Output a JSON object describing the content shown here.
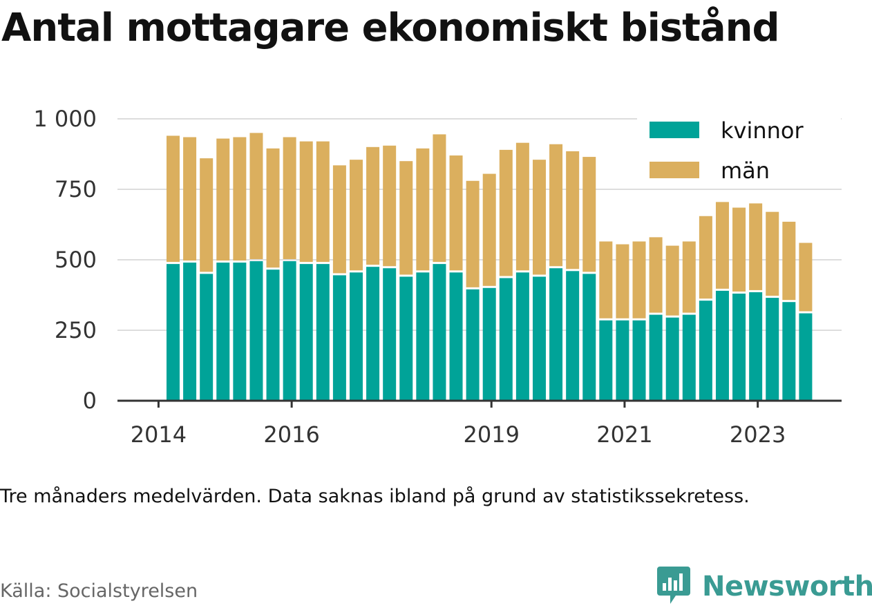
{
  "title": "Antal mottagare ekonomiskt bistånd",
  "note": "Tre månaders medelvärden. Data saknas ibland på grund av statistikssekretess.",
  "source": "Källa: Socialstyrelsen",
  "brand": {
    "name": "Newsworthy",
    "icon": "newsworthy-logo-icon",
    "color": "#3a9b93"
  },
  "chart_data": {
    "type": "bar",
    "stacked": true,
    "ylim": [
      0,
      1000
    ],
    "yticks": [
      0,
      250,
      500,
      750,
      1000
    ],
    "ytick_labels": [
      "0",
      "250",
      "500",
      "750",
      "1 000"
    ],
    "xticks": [
      "2014",
      "2016",
      "2019",
      "2021",
      "2023"
    ],
    "grid": true,
    "legend_position": "top-right",
    "series": [
      {
        "name": "kvinnor",
        "color": "#00a398",
        "values": [
          485,
          490,
          450,
          490,
          490,
          495,
          465,
          495,
          485,
          485,
          445,
          455,
          475,
          470,
          440,
          455,
          485,
          455,
          395,
          400,
          435,
          455,
          440,
          470,
          460,
          450,
          285,
          285,
          285,
          305,
          295,
          305,
          355,
          390,
          380,
          385,
          365,
          350,
          310
        ]
      },
      {
        "name": "män",
        "color": "#dbaf5e",
        "values": [
          455,
          445,
          410,
          440,
          445,
          455,
          430,
          440,
          435,
          435,
          390,
          400,
          425,
          435,
          410,
          440,
          460,
          415,
          385,
          405,
          455,
          460,
          415,
          440,
          425,
          415,
          280,
          270,
          280,
          275,
          255,
          260,
          300,
          315,
          305,
          315,
          305,
          285,
          250
        ]
      }
    ]
  }
}
